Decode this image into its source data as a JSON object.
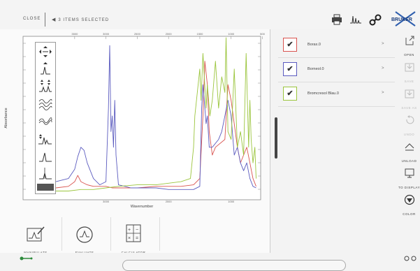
{
  "toolbar": {
    "close_label": "CLOSE",
    "selection_label": "3 ITEMS SELECTED",
    "print_icon": "printer-icon",
    "peaks_icon": "peak-icon",
    "link_icon": "link-icon",
    "logo_text": "BRUKER"
  },
  "chart_data": {
    "type": "line",
    "xlabel": "Wavenumber",
    "ylabel": "Absorbance",
    "x_reversed": true,
    "xlim": [
      3800,
      550
    ],
    "top_ticks": [
      "3500",
      "3000",
      "2500",
      "2000",
      "1500",
      "1000",
      "500"
    ],
    "bottom_ticks": [
      "3000",
      "2000",
      "1000"
    ],
    "series": [
      {
        "name": "Borax.0",
        "color": "#d9534f",
        "x": [
          3800,
          3600,
          3500,
          3450,
          3400,
          3300,
          3200,
          3000,
          2900,
          2500,
          2200,
          2000,
          1800,
          1600,
          1500,
          1450,
          1420,
          1380,
          1350,
          1300,
          1250,
          1100,
          1050,
          1000,
          950,
          900,
          850,
          800,
          750,
          700,
          650,
          600
        ],
        "y": [
          0.04,
          0.05,
          0.08,
          0.12,
          0.08,
          0.06,
          0.05,
          0.05,
          0.04,
          0.04,
          0.05,
          0.05,
          0.05,
          0.06,
          0.1,
          0.5,
          0.85,
          0.7,
          0.4,
          0.25,
          0.3,
          0.35,
          0.7,
          0.6,
          0.45,
          0.3,
          0.2,
          0.25,
          0.3,
          0.2,
          0.1,
          0.05
        ]
      },
      {
        "name": "Borneol.0",
        "color": "#5b5bbf",
        "x": [
          3800,
          3600,
          3500,
          3450,
          3400,
          3350,
          3300,
          3200,
          3100,
          3000,
          2960,
          2940,
          2920,
          2900,
          2880,
          2860,
          2840,
          2800,
          2600,
          2200,
          2000,
          1800,
          1600,
          1500,
          1470,
          1450,
          1400,
          1380,
          1350,
          1300,
          1200,
          1150,
          1100,
          1050,
          1000,
          950,
          900,
          850,
          800,
          750,
          700,
          650,
          600
        ],
        "y": [
          0.08,
          0.1,
          0.16,
          0.24,
          0.3,
          0.28,
          0.2,
          0.1,
          0.06,
          0.08,
          0.55,
          0.95,
          0.4,
          0.5,
          0.3,
          0.6,
          0.25,
          0.06,
          0.04,
          0.04,
          0.03,
          0.03,
          0.03,
          0.05,
          0.55,
          0.7,
          0.45,
          0.5,
          0.3,
          0.3,
          0.35,
          0.4,
          0.5,
          0.6,
          0.5,
          0.25,
          0.3,
          0.2,
          0.15,
          0.2,
          0.1,
          0.05,
          0.04
        ]
      },
      {
        "name": "Bromcresol Blau.0",
        "color": "#9bc53d",
        "x": [
          3800,
          3600,
          3400,
          3200,
          3000,
          2800,
          2500,
          2200,
          2000,
          1800,
          1650,
          1600,
          1580,
          1500,
          1480,
          1450,
          1400,
          1380,
          1340,
          1300,
          1250,
          1200,
          1150,
          1100,
          1080,
          1050,
          1000,
          950,
          900,
          850,
          800,
          760,
          720,
          700,
          680,
          650,
          620,
          600
        ],
        "y": [
          0.02,
          0.02,
          0.03,
          0.03,
          0.04,
          0.05,
          0.06,
          0.06,
          0.07,
          0.08,
          0.1,
          0.3,
          0.5,
          0.8,
          0.6,
          0.9,
          0.55,
          0.7,
          0.5,
          0.6,
          0.85,
          0.55,
          0.75,
          0.65,
          1.0,
          0.4,
          0.35,
          0.8,
          0.3,
          0.4,
          0.25,
          0.9,
          0.3,
          0.6,
          0.35,
          0.2,
          0.3,
          0.1
        ]
      }
    ]
  },
  "bottom_tools": [
    {
      "label": "MANIPULATE",
      "icon": "manipulate-icon"
    },
    {
      "label": "EVALUATE",
      "icon": "evaluate-icon"
    },
    {
      "label": "CALCULATOR",
      "icon": "calculator-icon"
    }
  ],
  "spectra": [
    {
      "name": "Borax.0",
      "color": "#d9534f",
      "checked": true
    },
    {
      "name": "Borneol.0",
      "color": "#5b5bbf",
      "checked": true
    },
    {
      "name": "Bromcresol Blau.0",
      "color": "#9bc53d",
      "checked": true
    }
  ],
  "right_actions": [
    {
      "label": "OPEN",
      "icon": "open-icon",
      "enabled": true
    },
    {
      "label": "SAVE",
      "icon": "save-icon",
      "enabled": false
    },
    {
      "label": "SAVE AS",
      "icon": "save-as-icon",
      "enabled": false
    },
    {
      "label": "UNDO",
      "icon": "undo-icon",
      "enabled": false
    },
    {
      "label": "UNLOAD",
      "icon": "unload-icon",
      "enabled": true
    },
    {
      "label": "TO DISPLAY",
      "icon": "display-icon",
      "enabled": true
    },
    {
      "label": "COLOR",
      "icon": "color-icon",
      "enabled": true
    }
  ],
  "colors": {
    "accent": "#2e8b3d"
  }
}
